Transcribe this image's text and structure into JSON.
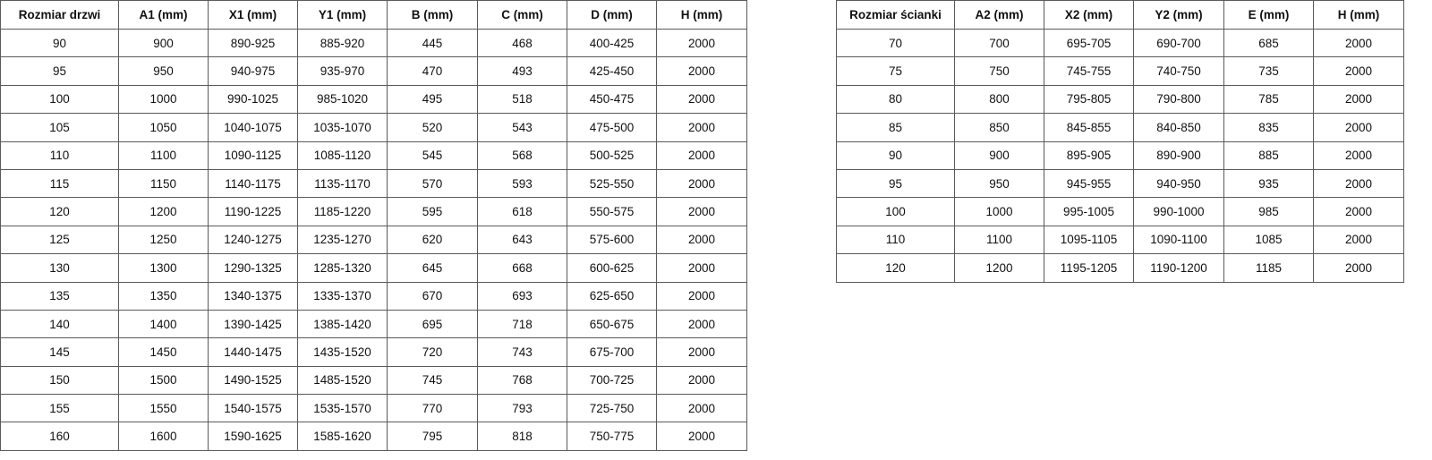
{
  "door_table": {
    "headers": [
      "Rozmiar drzwi",
      "A1 (mm)",
      "X1 (mm)",
      "Y1 (mm)",
      "B (mm)",
      "C (mm)",
      "D (mm)",
      "H (mm)"
    ],
    "rows": [
      [
        "90",
        "900",
        "890-925",
        "885-920",
        "445",
        "468",
        "400-425",
        "2000"
      ],
      [
        "95",
        "950",
        "940-975",
        "935-970",
        "470",
        "493",
        "425-450",
        "2000"
      ],
      [
        "100",
        "1000",
        "990-1025",
        "985-1020",
        "495",
        "518",
        "450-475",
        "2000"
      ],
      [
        "105",
        "1050",
        "1040-1075",
        "1035-1070",
        "520",
        "543",
        "475-500",
        "2000"
      ],
      [
        "110",
        "1100",
        "1090-1125",
        "1085-1120",
        "545",
        "568",
        "500-525",
        "2000"
      ],
      [
        "115",
        "1150",
        "1140-1175",
        "1135-1170",
        "570",
        "593",
        "525-550",
        "2000"
      ],
      [
        "120",
        "1200",
        "1190-1225",
        "1185-1220",
        "595",
        "618",
        "550-575",
        "2000"
      ],
      [
        "125",
        "1250",
        "1240-1275",
        "1235-1270",
        "620",
        "643",
        "575-600",
        "2000"
      ],
      [
        "130",
        "1300",
        "1290-1325",
        "1285-1320",
        "645",
        "668",
        "600-625",
        "2000"
      ],
      [
        "135",
        "1350",
        "1340-1375",
        "1335-1370",
        "670",
        "693",
        "625-650",
        "2000"
      ],
      [
        "140",
        "1400",
        "1390-1425",
        "1385-1420",
        "695",
        "718",
        "650-675",
        "2000"
      ],
      [
        "145",
        "1450",
        "1440-1475",
        "1435-1520",
        "720",
        "743",
        "675-700",
        "2000"
      ],
      [
        "150",
        "1500",
        "1490-1525",
        "1485-1520",
        "745",
        "768",
        "700-725",
        "2000"
      ],
      [
        "155",
        "1550",
        "1540-1575",
        "1535-1570",
        "770",
        "793",
        "725-750",
        "2000"
      ],
      [
        "160",
        "1600",
        "1590-1625",
        "1585-1620",
        "795",
        "818",
        "750-775",
        "2000"
      ]
    ]
  },
  "wall_table": {
    "headers": [
      "Rozmiar ścianki",
      "A2 (mm)",
      "X2 (mm)",
      "Y2 (mm)",
      "E (mm)",
      "H (mm)"
    ],
    "rows": [
      [
        "70",
        "700",
        "695-705",
        "690-700",
        "685",
        "2000"
      ],
      [
        "75",
        "750",
        "745-755",
        "740-750",
        "735",
        "2000"
      ],
      [
        "80",
        "800",
        "795-805",
        "790-800",
        "785",
        "2000"
      ],
      [
        "85",
        "850",
        "845-855",
        "840-850",
        "835",
        "2000"
      ],
      [
        "90",
        "900",
        "895-905",
        "890-900",
        "885",
        "2000"
      ],
      [
        "95",
        "950",
        "945-955",
        "940-950",
        "935",
        "2000"
      ],
      [
        "100",
        "1000",
        "995-1005",
        "990-1000",
        "985",
        "2000"
      ],
      [
        "110",
        "1100",
        "1095-1105",
        "1090-1100",
        "1085",
        "2000"
      ],
      [
        "120",
        "1200",
        "1195-1205",
        "1190-1200",
        "1185",
        "2000"
      ]
    ]
  }
}
